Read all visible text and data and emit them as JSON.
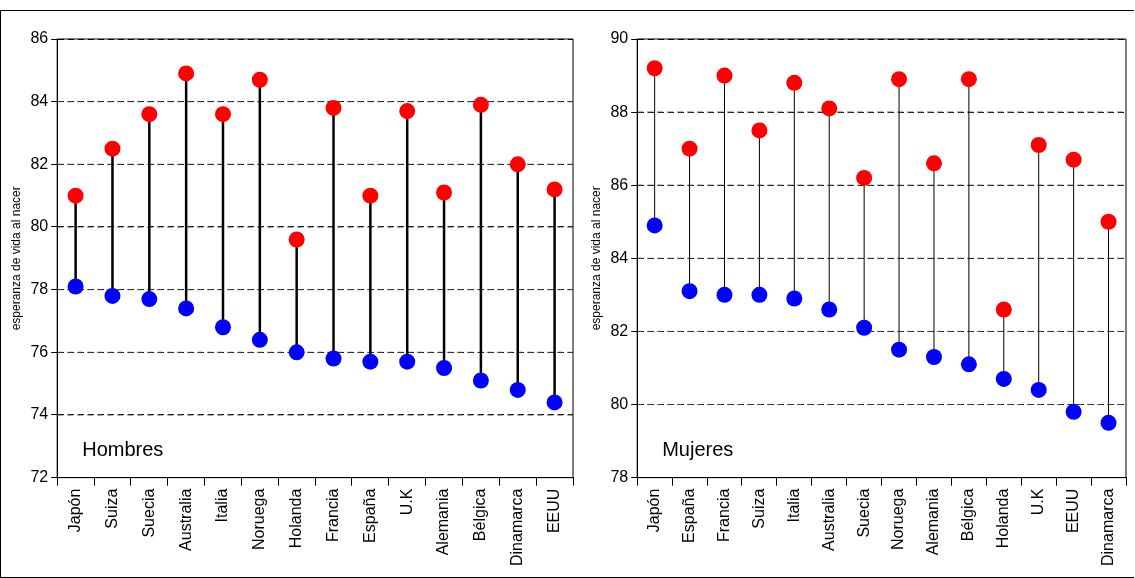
{
  "chart_data": [
    {
      "type": "scatter",
      "ylabel": "esperanza de vida al nacer",
      "annotations": [
        "Hombres"
      ],
      "categories": [
        "Japón",
        "Suiza",
        "Suecia",
        "Australia",
        "Italia",
        "Noruega",
        "Holanda",
        "Francia",
        "España",
        "U.K",
        "Alemania",
        "Bélgica",
        "Dinamarca",
        "EEUU"
      ],
      "series": [
        {
          "color": "#ff0000",
          "values": [
            81.0,
            82.5,
            83.6,
            84.9,
            83.6,
            84.7,
            79.6,
            83.8,
            81.0,
            83.7,
            81.1,
            83.9,
            82.0,
            81.2
          ]
        },
        {
          "color": "#0000ff",
          "values": [
            78.1,
            77.8,
            77.7,
            77.4,
            76.8,
            76.4,
            76.0,
            75.8,
            75.7,
            75.7,
            75.5,
            75.1,
            74.8,
            74.4
          ]
        }
      ],
      "ylim": [
        72,
        86
      ],
      "yticks": [
        72,
        74,
        76,
        78,
        80,
        82,
        84,
        86
      ],
      "grid": "y",
      "line_style": "dashed",
      "marker": "circle",
      "legend": false
    },
    {
      "type": "scatter",
      "ylabel": "esperanza de vida al nacer",
      "annotations": [
        "Mujeres"
      ],
      "categories": [
        "Japón",
        "España",
        "Francia",
        "Suiza",
        "Italia",
        "Australia",
        "Suecia",
        "Noruega",
        "Alemania",
        "Bélgica",
        "Holanda",
        "U.K",
        "EEUU",
        "Dinamarca"
      ],
      "series": [
        {
          "color": "#ff0000",
          "values": [
            89.2,
            87.0,
            89.0,
            87.5,
            88.8,
            88.1,
            86.2,
            88.9,
            86.6,
            88.9,
            82.6,
            87.1,
            86.7,
            85.0
          ]
        },
        {
          "color": "#0000ff",
          "values": [
            84.9,
            83.1,
            83.0,
            83.0,
            82.9,
            82.6,
            82.1,
            81.5,
            81.3,
            81.1,
            80.7,
            80.4,
            79.8,
            79.5
          ]
        }
      ],
      "ylim": [
        78,
        90
      ],
      "yticks": [
        78,
        80,
        82,
        84,
        86,
        88,
        90
      ],
      "grid": "y",
      "line_style": "dashed",
      "marker": "circle",
      "legend": false
    }
  ]
}
